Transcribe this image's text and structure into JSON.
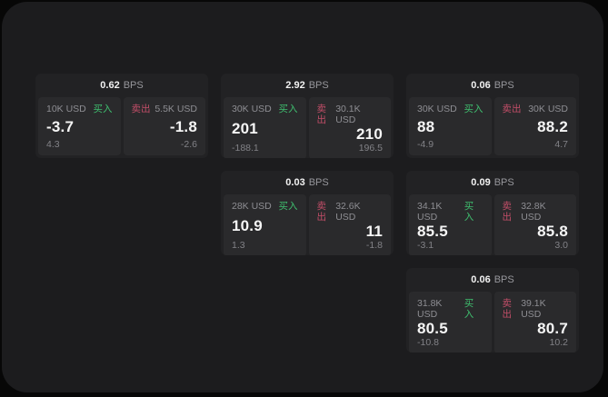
{
  "labels": {
    "bps_unit": "BPS",
    "buy": "买入",
    "sell": "卖出"
  },
  "colors": {
    "outer_bg": "#070707",
    "panel_bg": "#1c1c1e",
    "card_bg": "#222224",
    "tile_bg": "#2a2a2c",
    "buy_green": "#3fbf6f",
    "sell_red": "#c24e68",
    "primary_text": "#f5f5f5",
    "muted_text": "#8e8e93"
  },
  "cards": [
    {
      "spread": "0.62",
      "buy": {
        "notional": "10K USD",
        "price": "-3.7",
        "delta": "4.3"
      },
      "sell": {
        "notional": "5.5K USD",
        "price": "-1.8",
        "delta": "-2.6"
      }
    },
    {
      "spread": "2.92",
      "buy": {
        "notional": "30K USD",
        "price": "201",
        "delta": "-188.1"
      },
      "sell": {
        "notional": "30.1K USD",
        "price": "210",
        "delta": "196.5"
      }
    },
    {
      "spread": "0.06",
      "buy": {
        "notional": "30K USD",
        "price": "88",
        "delta": "-4.9"
      },
      "sell": {
        "notional": "30K USD",
        "price": "88.2",
        "delta": "4.7"
      }
    },
    {
      "spread": "0.03",
      "buy": {
        "notional": "28K USD",
        "price": "10.9",
        "delta": "1.3"
      },
      "sell": {
        "notional": "32.6K USD",
        "price": "11",
        "delta": "-1.8"
      }
    },
    {
      "spread": "0.09",
      "buy": {
        "notional": "34.1K USD",
        "price": "85.5",
        "delta": "-3.1"
      },
      "sell": {
        "notional": "32.8K USD",
        "price": "85.8",
        "delta": "3.0"
      }
    },
    {
      "spread": "0.06",
      "buy": {
        "notional": "31.8K USD",
        "price": "80.5",
        "delta": "-10.8"
      },
      "sell": {
        "notional": "39.1K USD",
        "price": "80.7",
        "delta": "10.2"
      }
    }
  ]
}
